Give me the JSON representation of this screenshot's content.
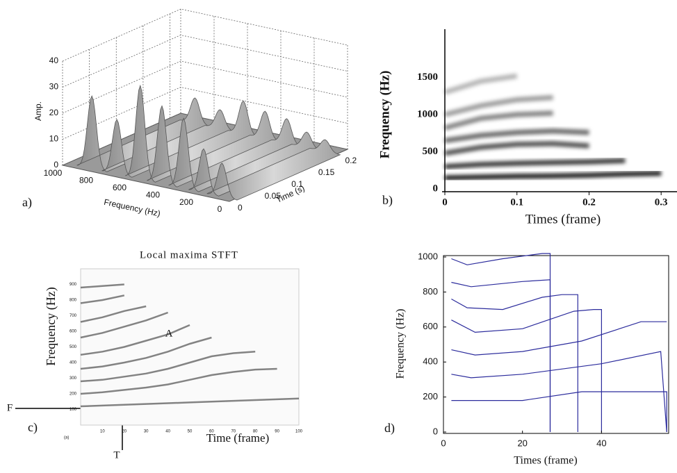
{
  "chart_data": [
    {
      "type": "surface3d",
      "panel_label": "a)",
      "xlabel": "Frequency (Hz)",
      "ylabel": "Time (s)",
      "zlabel": "Amp.",
      "xlim": [
        0,
        1000
      ],
      "xticks": [
        0,
        200,
        400,
        600,
        800,
        1000
      ],
      "ylim": [
        0,
        0.22
      ],
      "yticks": [
        0,
        0.05,
        0.1,
        0.15,
        0.2
      ],
      "zlim": [
        0,
        40
      ],
      "zticks": [
        0,
        10,
        20,
        30,
        40
      ],
      "peaks": {
        "frequency": [
          850,
          700,
          560,
          430,
          300,
          180,
          70
        ],
        "amplitude": [
          28,
          21,
          36,
          30,
          27,
          17,
          13
        ]
      }
    },
    {
      "type": "spectrogram",
      "panel_label": "b)",
      "xlabel": "Times (frame)",
      "ylabel": "Frequency (Hz)",
      "x": [
        0,
        0.05,
        0.1,
        0.15,
        0.2,
        0.25,
        0.3
      ],
      "tracks": [
        [
          150,
          160,
          170,
          175,
          185,
          200,
          210
        ],
        [
          300,
          330,
          345,
          355,
          365,
          380,
          null
        ],
        [
          480,
          560,
          600,
          610,
          580,
          null,
          null
        ],
        [
          650,
          720,
          760,
          780,
          760,
          null,
          null
        ],
        [
          820,
          950,
          1000,
          1020,
          null,
          null,
          null
        ],
        [
          1000,
          1120,
          1200,
          1230,
          null,
          null,
          null
        ],
        [
          1300,
          1450,
          1520,
          null,
          null,
          null,
          null
        ]
      ],
      "xlim": [
        0,
        0.322
      ],
      "xticks": [
        0,
        0.1,
        0.2,
        0.3
      ],
      "ylim": [
        0,
        2150
      ],
      "yticks": [
        0,
        500,
        1000,
        1500
      ]
    },
    {
      "type": "track_map",
      "title": "Local maxima STFT",
      "panel_label": "c)",
      "corner_label": "(a)",
      "annotations": [
        "A",
        "F",
        "T"
      ],
      "xlabel": "Time (frame)",
      "ylabel": "Frequency (Hz)",
      "x": [
        0,
        10,
        20,
        30,
        40,
        50,
        60,
        70,
        80,
        90,
        100
      ],
      "tracks": [
        [
          120,
          125,
          130,
          135,
          140,
          145,
          150,
          155,
          160,
          165,
          170
        ],
        [
          200,
          210,
          225,
          240,
          260,
          290,
          320,
          340,
          355,
          360,
          null
        ],
        [
          280,
          290,
          310,
          330,
          360,
          400,
          440,
          460,
          470,
          null,
          null
        ],
        [
          360,
          375,
          400,
          430,
          470,
          520,
          560,
          null,
          null,
          null,
          null
        ],
        [
          450,
          470,
          500,
          540,
          580,
          640,
          null,
          null,
          null,
          null,
          null
        ],
        [
          560,
          590,
          630,
          670,
          720,
          null,
          null,
          null,
          null,
          null,
          null
        ],
        [
          660,
          690,
          730,
          760,
          null,
          null,
          null,
          null,
          null,
          null,
          null
        ],
        [
          780,
          800,
          830,
          null,
          null,
          null,
          null,
          null,
          null,
          null,
          null
        ],
        [
          880,
          890,
          900,
          null,
          null,
          null,
          null,
          null,
          null,
          null,
          null
        ]
      ],
      "xlim": [
        0,
        100
      ],
      "xticks": [
        10,
        20,
        30,
        40,
        50,
        60,
        70,
        80,
        90,
        100
      ],
      "ylim": [
        0,
        1000
      ],
      "yticks": [
        100,
        200,
        300,
        400,
        500,
        600,
        700,
        800,
        900
      ]
    },
    {
      "type": "line",
      "panel_label": "d)",
      "xlabel": "Times (frame)",
      "ylabel": "Frequency (Hz)",
      "series": [
        {
          "color": "#2b2b9c",
          "x": [
            2,
            20,
            35,
            56,
            56.5,
            56.5
          ],
          "values": [
            180,
            180,
            230,
            230,
            230,
            0
          ]
        },
        {
          "color": "#2b2b9c",
          "x": [
            2,
            7,
            20,
            40,
            55,
            56.5
          ],
          "values": [
            330,
            310,
            330,
            390,
            460,
            0
          ]
        },
        {
          "color": "#2b2b9c",
          "x": [
            2,
            8,
            20,
            35,
            50,
            56.5
          ],
          "values": [
            470,
            440,
            460,
            520,
            630,
            630
          ]
        },
        {
          "color": "#2b2b9c",
          "x": [
            2,
            8,
            20,
            33,
            38,
            40,
            40
          ],
          "values": [
            640,
            570,
            590,
            690,
            700,
            700,
            0
          ]
        },
        {
          "color": "#2b2b9c",
          "x": [
            2,
            6,
            15,
            25,
            30,
            34,
            34
          ],
          "values": [
            760,
            710,
            700,
            770,
            785,
            785,
            0
          ]
        },
        {
          "color": "#2b2b9c",
          "x": [
            2,
            7,
            20,
            27,
            27
          ],
          "values": [
            855,
            830,
            860,
            870,
            0
          ]
        },
        {
          "color": "#2b2b9c",
          "x": [
            2,
            6,
            15,
            25,
            27,
            27
          ],
          "values": [
            990,
            955,
            990,
            1020,
            1020,
            0
          ]
        }
      ],
      "xlim": [
        0,
        57
      ],
      "xticks": [
        0,
        20,
        40
      ],
      "ylim": [
        0,
        1000
      ],
      "yticks": [
        0,
        200,
        400,
        600,
        800,
        1000
      ]
    }
  ]
}
